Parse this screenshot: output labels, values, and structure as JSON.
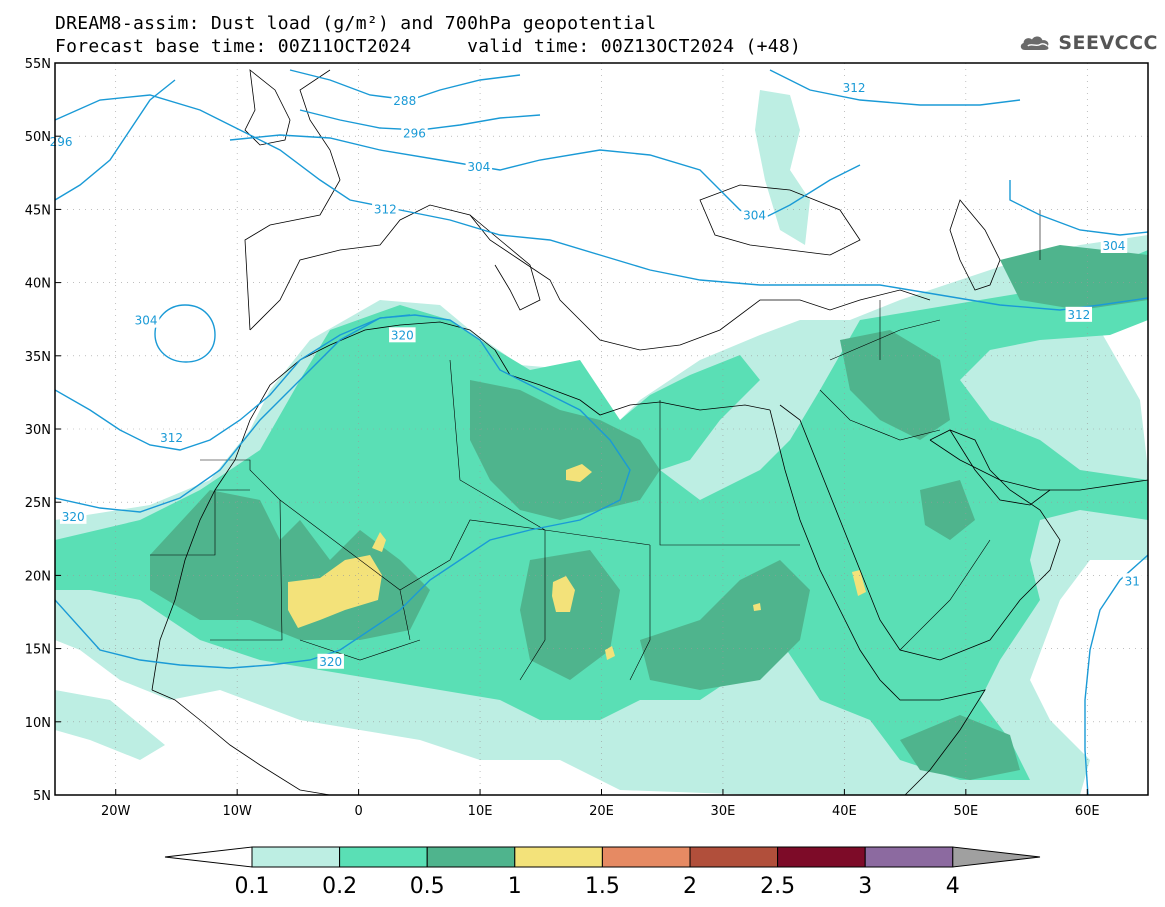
{
  "header": {
    "line1": "DREAM8-assim: Dust load (g/m²) and 700hPa geopotential",
    "line2": "Forecast base time: 00Z11OCT2024     valid time: 00Z13OCT2024 (+48)"
  },
  "logo": {
    "text": "SEEVCCC",
    "icon": "cloud-logo-icon"
  },
  "map": {
    "lon_range": [
      -25,
      65
    ],
    "lat_range": [
      5,
      55
    ],
    "lon_ticks": [
      {
        "value": -20,
        "label": "20W"
      },
      {
        "value": -10,
        "label": "10W"
      },
      {
        "value": 0,
        "label": "0"
      },
      {
        "value": 10,
        "label": "10E"
      },
      {
        "value": 20,
        "label": "20E"
      },
      {
        "value": 30,
        "label": "30E"
      },
      {
        "value": 40,
        "label": "40E"
      },
      {
        "value": 50,
        "label": "50E"
      },
      {
        "value": 60,
        "label": "60E"
      }
    ],
    "lat_ticks": [
      {
        "value": 55,
        "label": "55N"
      },
      {
        "value": 50,
        "label": "50N"
      },
      {
        "value": 45,
        "label": "45N"
      },
      {
        "value": 40,
        "label": "40N"
      },
      {
        "value": 35,
        "label": "35N"
      },
      {
        "value": 30,
        "label": "30N"
      },
      {
        "value": 25,
        "label": "25N"
      },
      {
        "value": 20,
        "label": "20N"
      },
      {
        "value": 15,
        "label": "15N"
      },
      {
        "value": 10,
        "label": "10N"
      },
      {
        "value": 5,
        "label": "5N"
      }
    ],
    "contour_color": "#1a9ad6",
    "contour_labels": [
      {
        "text": "296",
        "lon": -24.5,
        "lat": 49.6
      },
      {
        "text": "288",
        "lon": 3.8,
        "lat": 52.4
      },
      {
        "text": "296",
        "lon": 4.6,
        "lat": 50.2
      },
      {
        "text": "304",
        "lon": 9.9,
        "lat": 47.9
      },
      {
        "text": "312",
        "lon": 40.8,
        "lat": 53.3
      },
      {
        "text": "312",
        "lon": 2.2,
        "lat": 45.0
      },
      {
        "text": "304",
        "lon": 32.6,
        "lat": 44.6
      },
      {
        "text": "304",
        "lon": 62.2,
        "lat": 42.5
      },
      {
        "text": "304",
        "lon": -17.5,
        "lat": 37.4
      },
      {
        "text": "320",
        "lon": 3.6,
        "lat": 36.4
      },
      {
        "text": "312",
        "lon": 59.3,
        "lat": 37.8
      },
      {
        "text": "312",
        "lon": -15.4,
        "lat": 29.4
      },
      {
        "text": "320",
        "lon": -23.5,
        "lat": 24.0
      },
      {
        "text": "320",
        "lon": -2.3,
        "lat": 14.1
      },
      {
        "text": "31",
        "lon": 63.7,
        "lat": 19.6
      }
    ]
  },
  "colorbar": {
    "levels": [
      "0.1",
      "0.2",
      "0.5",
      "1",
      "1.5",
      "2",
      "2.5",
      "3",
      "4"
    ],
    "colors": [
      "#bdeee3",
      "#5adfb5",
      "#4fb48d",
      "#f3e27a",
      "#e68a63",
      "#b14f3b",
      "#7d0b28",
      "#8c6aa0"
    ],
    "under_color": "#ffffff",
    "over_color": "#a0a0a0"
  },
  "dust_colors": {
    "light": "#bdeee3",
    "mid": "#5adfb5",
    "dark": "#4fb48d",
    "yellow": "#f3e27a"
  }
}
